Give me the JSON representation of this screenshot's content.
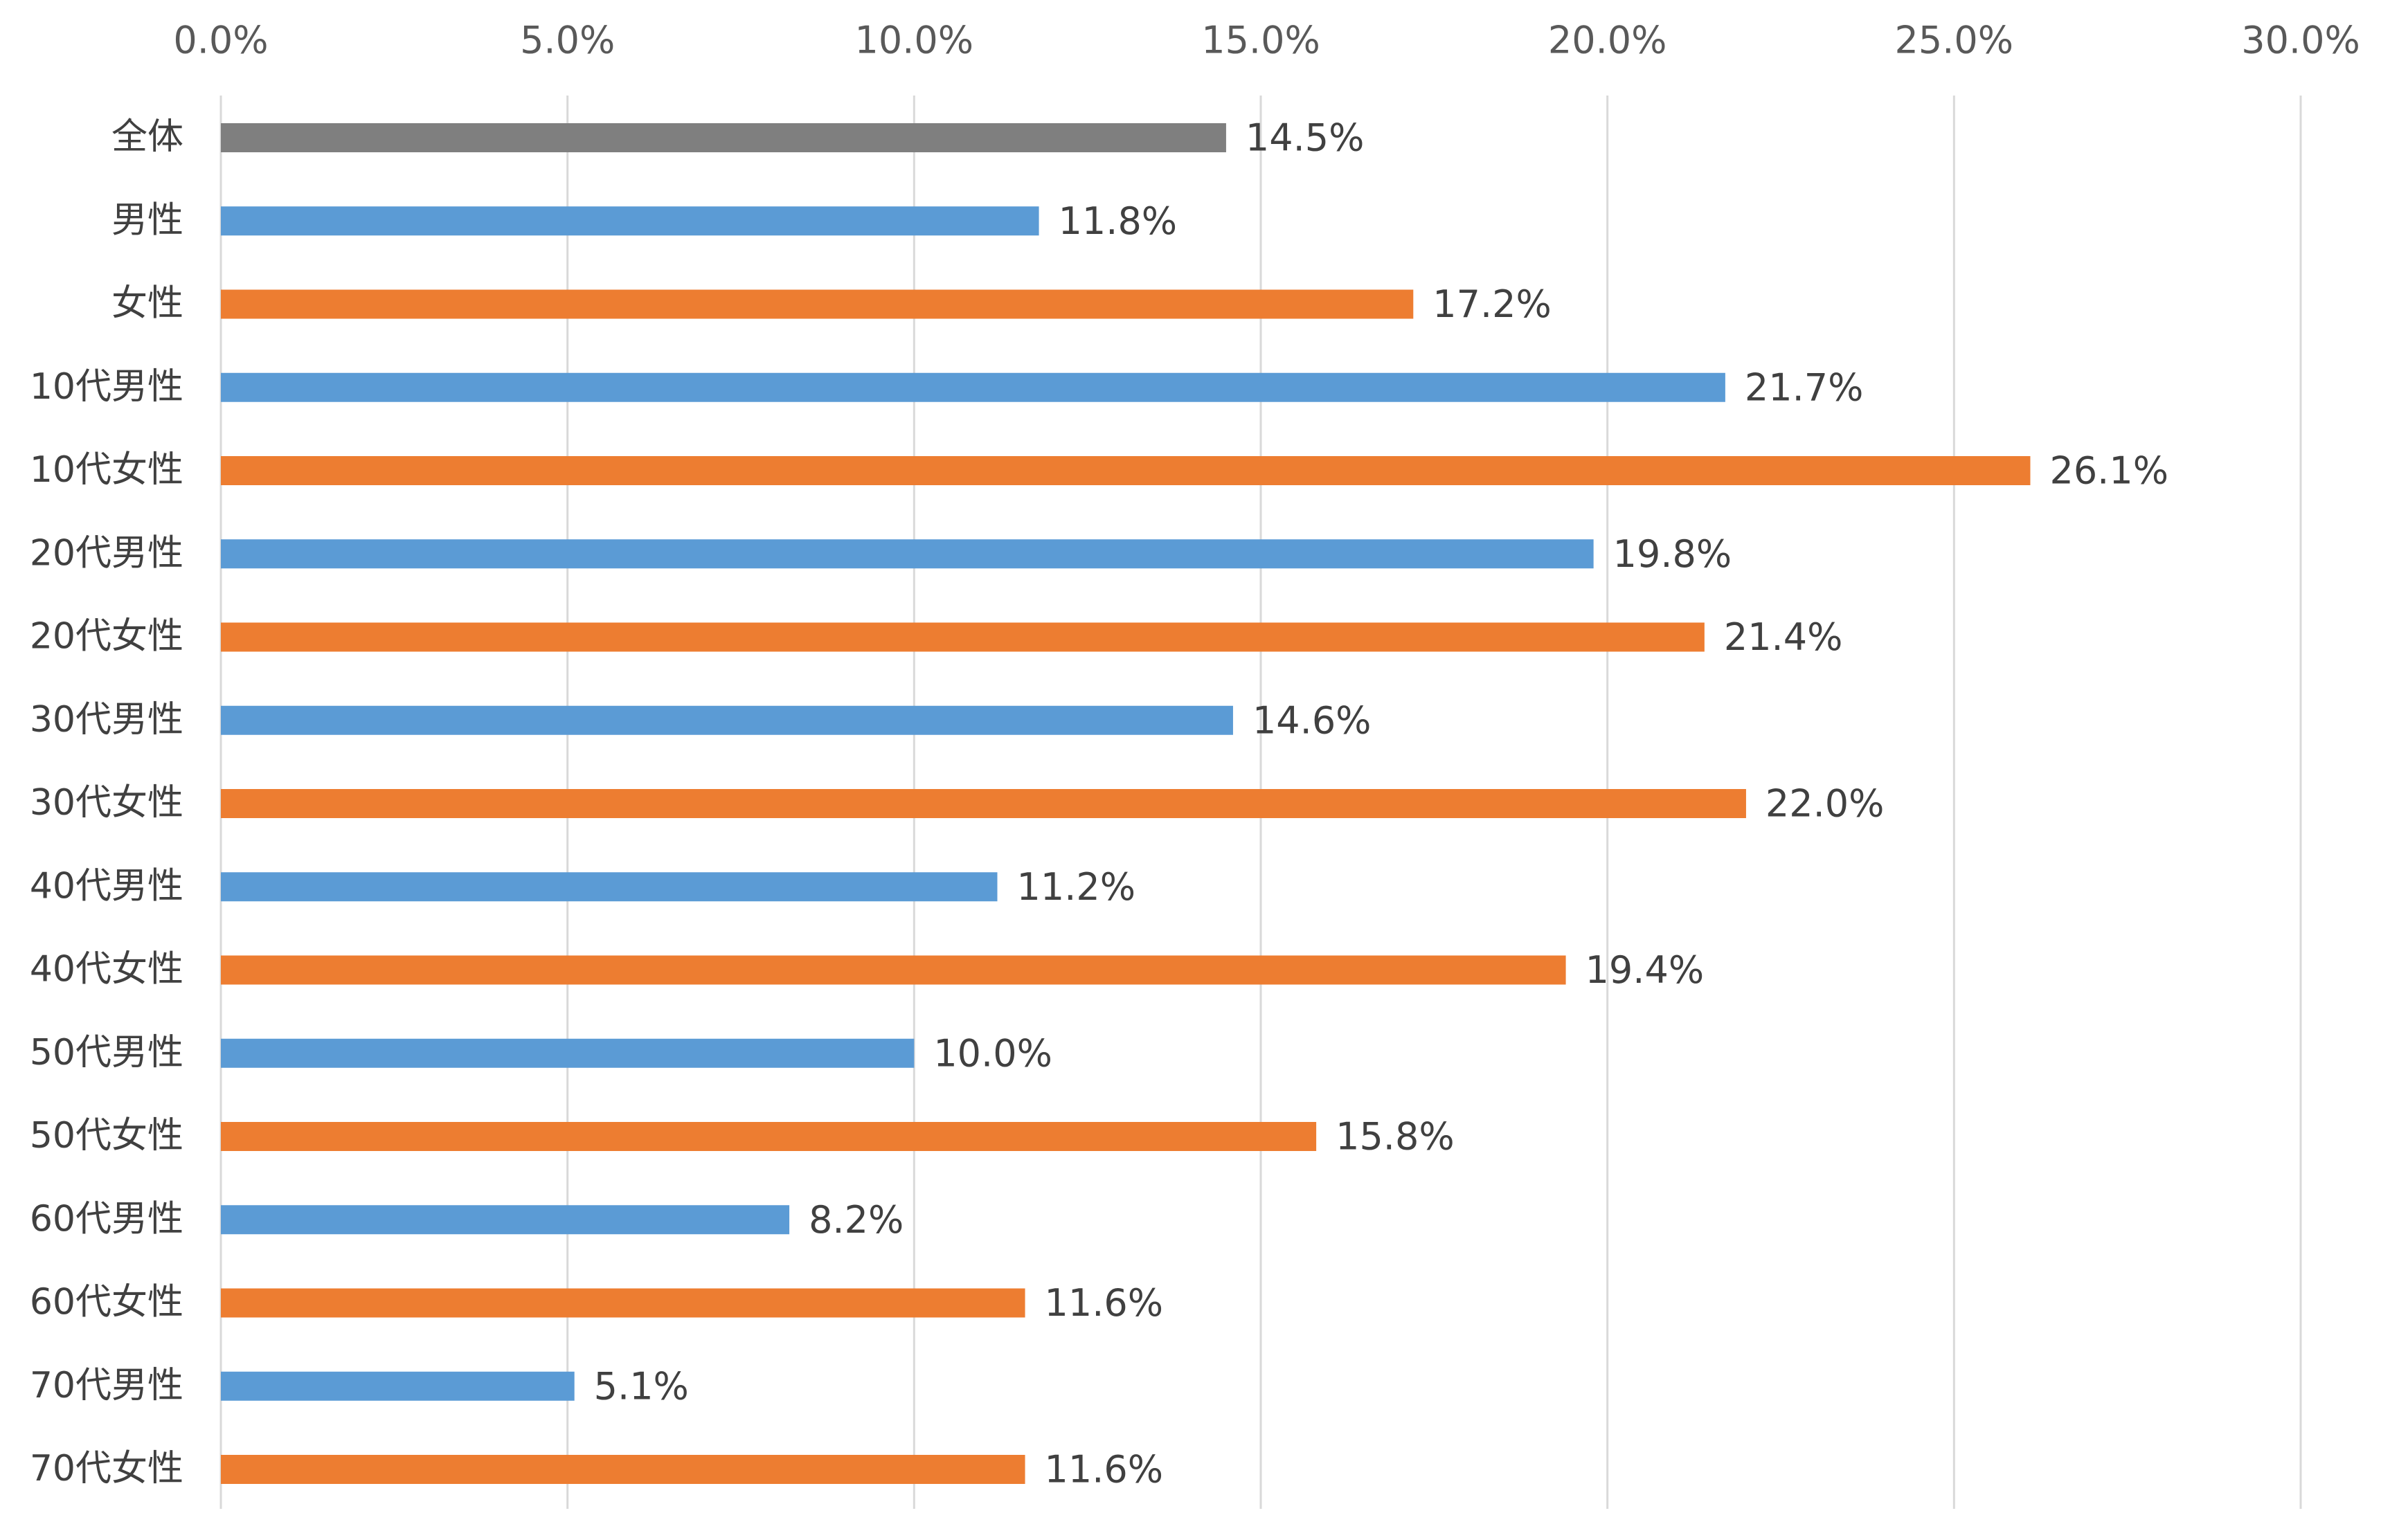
{
  "chart_data": {
    "type": "bar",
    "orientation": "horizontal",
    "categories": [
      "全体",
      "男性",
      "女性",
      "10代男性",
      "10代女性",
      "20代男性",
      "20代女性",
      "30代男性",
      "30代女性",
      "40代男性",
      "40代女性",
      "50代男性",
      "50代女性",
      "60代男性",
      "60代女性",
      "70代男性",
      "70代女性"
    ],
    "values": [
      14.5,
      11.8,
      17.2,
      21.7,
      26.1,
      19.8,
      21.4,
      14.6,
      22.0,
      11.2,
      19.4,
      10.0,
      15.8,
      8.2,
      11.6,
      5.1,
      11.6
    ],
    "data_labels": [
      "14.5%",
      "11.8%",
      "17.2%",
      "21.7%",
      "26.1%",
      "19.8%",
      "21.4%",
      "14.6%",
      "22.0%",
      "11.2%",
      "19.4%",
      "10.0%",
      "15.8%",
      "8.2%",
      "11.6%",
      "5.1%",
      "11.6%"
    ],
    "bar_color_groups": [
      "total",
      "male",
      "female",
      "male",
      "female",
      "male",
      "female",
      "male",
      "female",
      "male",
      "female",
      "male",
      "female",
      "male",
      "female",
      "male",
      "female"
    ],
    "colors": {
      "total": "#7f7f7f",
      "male": "#5b9bd5",
      "female": "#ed7d31"
    },
    "xlim": [
      0,
      30
    ],
    "x_ticks": [
      0,
      5,
      10,
      15,
      20,
      25,
      30
    ],
    "x_tick_labels": [
      "0.0%",
      "5.0%",
      "10.0%",
      "15.0%",
      "20.0%",
      "25.0%",
      "30.0%"
    ],
    "x_axis_position": "top",
    "grid": true,
    "legend": "none",
    "title": "",
    "xlabel": "",
    "ylabel": ""
  }
}
